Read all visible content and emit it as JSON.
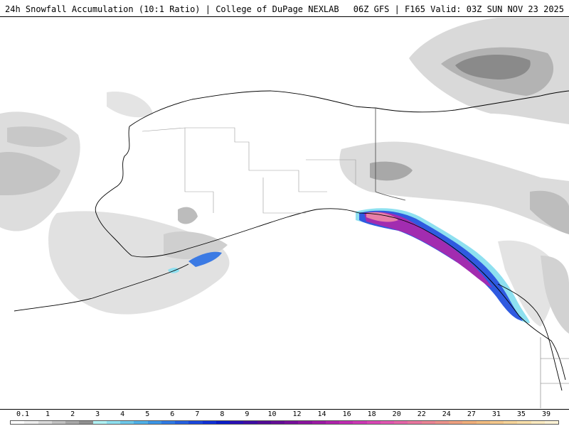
{
  "header": {
    "title": "24h Snowfall Accumulation (10:1 Ratio) | College of DuPage NEXLAB",
    "run_info": "06Z GFS | F165 Valid: 03Z SUN NOV 23 2025"
  },
  "legend": {
    "labels": [
      "0.1",
      "1",
      "2",
      "3",
      "4",
      "5",
      "6",
      "7",
      "8",
      "9",
      "10",
      "12",
      "14",
      "16",
      "18",
      "20",
      "22",
      "24",
      "27",
      "31",
      "35",
      "39"
    ],
    "colors": [
      "#ffffff",
      "#eeeeee",
      "#d9d9d9",
      "#c2c2c2",
      "#a8a8a8",
      "#8f8f8f",
      "#b0f2f4",
      "#8ee0f0",
      "#6cc8ea",
      "#4fb0e8",
      "#3b95e6",
      "#2f7ae4",
      "#2460e0",
      "#1a46dc",
      "#1030d6",
      "#0a1cc8",
      "#2a10b4",
      "#3e0ca4",
      "#520a96",
      "#640c96",
      "#760f9a",
      "#8a149e",
      "#9c1aa4",
      "#ae22aa",
      "#bf2cb0",
      "#cc38b4",
      "#d846b4",
      "#e056b0",
      "#e466a8",
      "#e8769e",
      "#ea8494",
      "#ec928a",
      "#eea080",
      "#f0ae7a",
      "#f2bc80",
      "#f4c88c",
      "#f6d49a",
      "#f8dfaa",
      "#faeac0",
      "#fcf2d4"
    ]
  },
  "map": {
    "region": "Alaska and Gulf of Alaska"
  }
}
